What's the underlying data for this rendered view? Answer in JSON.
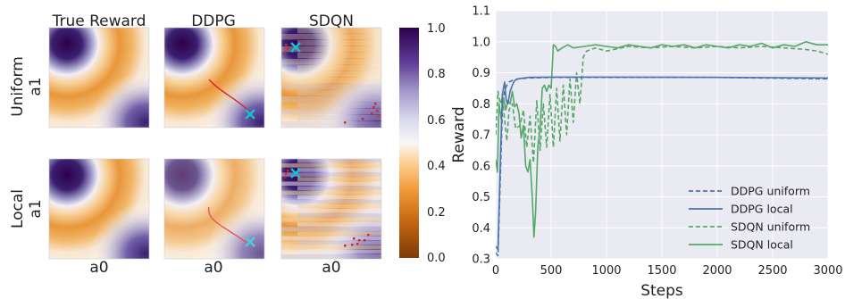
{
  "heatmaps": {
    "column_titles": [
      "True Reward",
      "DDPG",
      "SDQN"
    ],
    "row_labels": [
      [
        "Uniform",
        "a1"
      ],
      [
        "Local",
        "a1"
      ]
    ],
    "x_label": "a0",
    "colorbar_ticks": [
      "1.0",
      "0.8",
      "0.6",
      "0.4",
      "0.2",
      "0.0"
    ],
    "colors": {
      "low": "#7f3b08",
      "mid": "#f7f7f7",
      "high": "#2d004b",
      "trajectory": "#d62728",
      "marker": "#17becf"
    }
  },
  "chart_data": [
    {
      "type": "heatmap",
      "rows": [
        "Uniform",
        "Local"
      ],
      "columns": [
        "True Reward",
        "DDPG",
        "SDQN"
      ],
      "xlabel": "a0",
      "ylabel": "a1",
      "colorbar_range": [
        0.0,
        1.0
      ],
      "colorbar_ticks": [
        0.0,
        0.2,
        0.4,
        0.6,
        0.8,
        1.0
      ]
    },
    {
      "type": "line",
      "xlabel": "Steps",
      "ylabel": "Reward",
      "xlim": [
        0,
        3000
      ],
      "ylim": [
        0.3,
        1.1
      ],
      "xticks": [
        "0",
        "500",
        "1000",
        "1500",
        "2000",
        "2500",
        "3000"
      ],
      "yticks": [
        "0.3",
        "0.4",
        "0.5",
        "0.6",
        "0.7",
        "0.8",
        "0.9",
        "1.0",
        "1.1"
      ],
      "grid": true,
      "legend_position": "bottom-right",
      "series": [
        {
          "name": "DDPG uniform",
          "color": "#4c72b0",
          "dash": true,
          "x": [
            0,
            20,
            40,
            60,
            80,
            100,
            120,
            150,
            200,
            300,
            500,
            1000,
            2000,
            3000
          ],
          "y": [
            0.32,
            0.31,
            0.55,
            0.78,
            0.84,
            0.86,
            0.87,
            0.875,
            0.88,
            0.883,
            0.885,
            0.885,
            0.885,
            0.88
          ]
        },
        {
          "name": "DDPG local",
          "color": "#4c72b0",
          "dash": false,
          "x": [
            0,
            20,
            40,
            60,
            80,
            95,
            110,
            130,
            150,
            170,
            200,
            250,
            300,
            500,
            1000,
            2000,
            3000
          ],
          "y": [
            0.34,
            0.33,
            0.6,
            0.83,
            0.87,
            0.81,
            0.8,
            0.84,
            0.86,
            0.875,
            0.88,
            0.883,
            0.885,
            0.886,
            0.886,
            0.885,
            0.883
          ]
        },
        {
          "name": "SDQN uniform",
          "color": "#55a868",
          "dash": true,
          "x": [
            0,
            20,
            40,
            60,
            80,
            100,
            120,
            150,
            180,
            220,
            250,
            280,
            310,
            340,
            370,
            400,
            430,
            460,
            490,
            520,
            550,
            580,
            610,
            640,
            670,
            700,
            730,
            760,
            790,
            820,
            900,
            1000,
            1200,
            1400,
            1600,
            1800,
            2000,
            2200,
            2400,
            2600,
            2800,
            2900,
            2950,
            3000
          ],
          "y": [
            0.7,
            0.84,
            0.8,
            0.82,
            0.75,
            0.68,
            0.78,
            0.8,
            0.72,
            0.73,
            0.78,
            0.66,
            0.76,
            0.61,
            0.81,
            0.65,
            0.8,
            0.66,
            0.83,
            0.66,
            0.85,
            0.68,
            0.86,
            0.7,
            0.88,
            0.74,
            0.9,
            0.8,
            0.95,
            0.97,
            0.98,
            0.97,
            0.985,
            0.98,
            0.985,
            0.98,
            0.985,
            0.98,
            0.985,
            0.98,
            0.975,
            0.97,
            0.965,
            0.96
          ]
        },
        {
          "name": "SDQN local",
          "color": "#55a868",
          "dash": false,
          "x": [
            0,
            15,
            30,
            50,
            70,
            90,
            110,
            130,
            150,
            170,
            190,
            210,
            230,
            250,
            270,
            290,
            310,
            330,
            345,
            360,
            380,
            400,
            420,
            440,
            460,
            480,
            500,
            520,
            540,
            560,
            600,
            650,
            700,
            800,
            900,
            1000,
            1100,
            1200,
            1300,
            1400,
            1500,
            1600,
            1700,
            1800,
            1900,
            2000,
            2100,
            2200,
            2300,
            2400,
            2500,
            2600,
            2700,
            2800,
            2900,
            3000
          ],
          "y": [
            0.62,
            0.58,
            0.8,
            0.75,
            0.82,
            0.78,
            0.81,
            0.8,
            0.84,
            0.79,
            0.8,
            0.77,
            0.69,
            0.73,
            0.6,
            0.58,
            0.62,
            0.5,
            0.37,
            0.45,
            0.66,
            0.72,
            0.85,
            0.86,
            0.84,
            0.86,
            0.85,
            0.99,
            0.985,
            0.97,
            0.98,
            0.99,
            0.98,
            0.985,
            0.99,
            0.985,
            0.98,
            0.99,
            0.985,
            0.98,
            0.99,
            0.985,
            0.99,
            0.98,
            0.99,
            0.985,
            0.98,
            0.99,
            0.985,
            0.995,
            0.98,
            0.99,
            0.985,
            1.0,
            0.99,
            0.99
          ]
        }
      ]
    }
  ]
}
